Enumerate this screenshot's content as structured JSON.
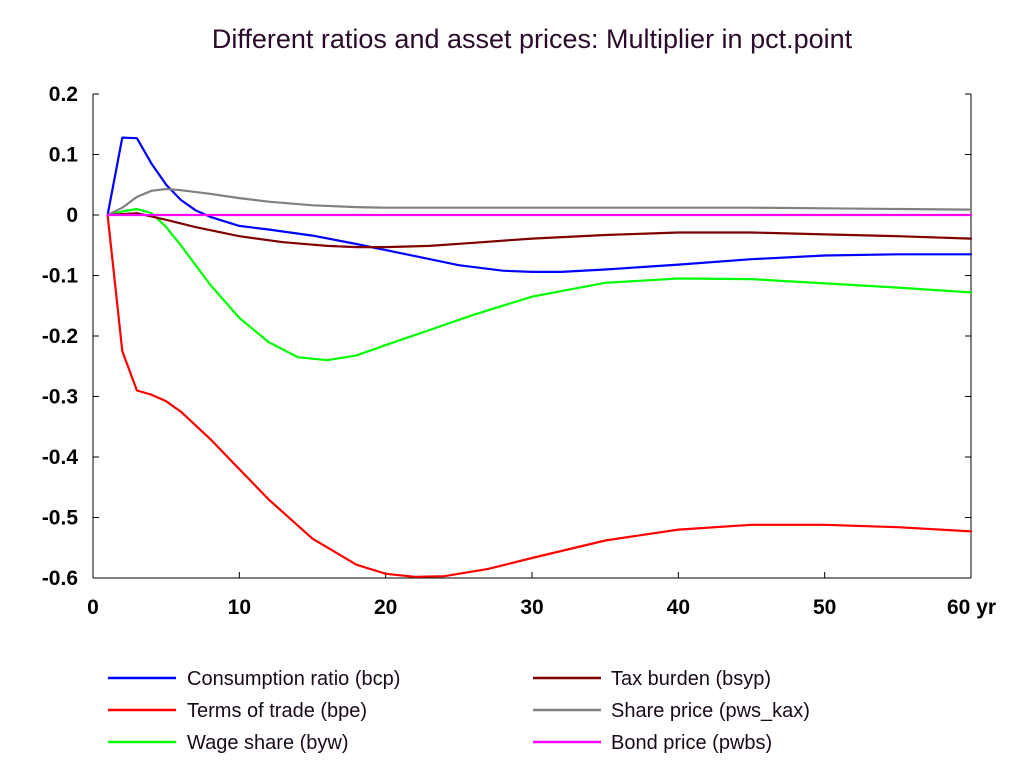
{
  "chart_data": {
    "type": "line",
    "title": "Different ratios and asset prices: Multiplier in pct.point",
    "xlabel": "",
    "ylabel": "",
    "xlim": [
      0,
      60
    ],
    "ylim": [
      -0.6,
      0.2
    ],
    "x_ticks": [
      0,
      10,
      20,
      30,
      40,
      50,
      60
    ],
    "x_tick_labels": [
      "0",
      "10",
      "20",
      "30",
      "40",
      "50",
      "60 yr"
    ],
    "y_ticks": [
      0.2,
      0.1,
      0,
      -0.1,
      -0.2,
      -0.3,
      -0.4,
      -0.5,
      -0.6
    ],
    "y_tick_labels": [
      "0.2",
      "0.1",
      "0",
      "-0.1",
      "-0.2",
      "-0.3",
      "-0.4",
      "-0.5",
      "-0.6"
    ],
    "grid": false,
    "legend_position": "bottom",
    "series": [
      {
        "name": "Consumption ratio (bcp)",
        "color": "#0000ff",
        "x": [
          1,
          2,
          3,
          4,
          5,
          6,
          7,
          8,
          10,
          12,
          15,
          18,
          20,
          22,
          25,
          28,
          30,
          32,
          35,
          40,
          45,
          50,
          55,
          60
        ],
        "y": [
          0,
          0.128,
          0.127,
          0.085,
          0.05,
          0.025,
          0.008,
          -0.003,
          -0.018,
          -0.024,
          -0.034,
          -0.048,
          -0.058,
          -0.068,
          -0.083,
          -0.092,
          -0.094,
          -0.094,
          -0.09,
          -0.082,
          -0.073,
          -0.067,
          -0.065,
          -0.065
        ]
      },
      {
        "name": "Terms of trade (bpe)",
        "color": "#ff0000",
        "x": [
          1,
          2,
          3,
          4,
          5,
          6,
          8,
          10,
          12,
          15,
          18,
          20,
          22,
          24,
          27,
          30,
          35,
          40,
          45,
          50,
          55,
          60
        ],
        "y": [
          0,
          -0.225,
          -0.29,
          -0.297,
          -0.308,
          -0.325,
          -0.37,
          -0.42,
          -0.47,
          -0.535,
          -0.578,
          -0.593,
          -0.598,
          -0.597,
          -0.585,
          -0.567,
          -0.538,
          -0.52,
          -0.512,
          -0.512,
          -0.516,
          -0.523
        ]
      },
      {
        "name": "Wage share (byw)",
        "color": "#00ff00",
        "x": [
          1,
          2,
          3,
          4,
          5,
          6,
          8,
          10,
          12,
          14,
          16,
          18,
          20,
          23,
          26,
          30,
          35,
          40,
          45,
          50,
          55,
          60
        ],
        "y": [
          0,
          0.006,
          0.01,
          0.003,
          -0.02,
          -0.05,
          -0.115,
          -0.17,
          -0.21,
          -0.235,
          -0.24,
          -0.232,
          -0.215,
          -0.19,
          -0.165,
          -0.135,
          -0.112,
          -0.105,
          -0.106,
          -0.113,
          -0.12,
          -0.128
        ]
      },
      {
        "name": "Tax burden (bsyp)",
        "color": "#7f0000",
        "x": [
          1,
          3,
          5,
          7,
          10,
          13,
          16,
          18,
          20,
          23,
          26,
          30,
          35,
          40,
          45,
          50,
          55,
          60
        ],
        "y": [
          0,
          0.003,
          -0.008,
          -0.02,
          -0.035,
          -0.045,
          -0.051,
          -0.053,
          -0.053,
          -0.051,
          -0.046,
          -0.039,
          -0.033,
          -0.029,
          -0.029,
          -0.032,
          -0.035,
          -0.039
        ]
      },
      {
        "name": "Share price (pws_kax)",
        "color": "#808080",
        "x": [
          1,
          2,
          3,
          4,
          5,
          6,
          8,
          10,
          12,
          15,
          18,
          20,
          25,
          30,
          35,
          40,
          45,
          50,
          55,
          60
        ],
        "y": [
          0,
          0.012,
          0.03,
          0.04,
          0.043,
          0.041,
          0.035,
          0.028,
          0.022,
          0.016,
          0.013,
          0.012,
          0.012,
          0.012,
          0.012,
          0.012,
          0.012,
          0.011,
          0.01,
          0.009
        ]
      },
      {
        "name": "Bond price (pwbs)",
        "color": "#ff00ff",
        "x": [
          1,
          60
        ],
        "y": [
          0,
          0
        ]
      }
    ]
  }
}
